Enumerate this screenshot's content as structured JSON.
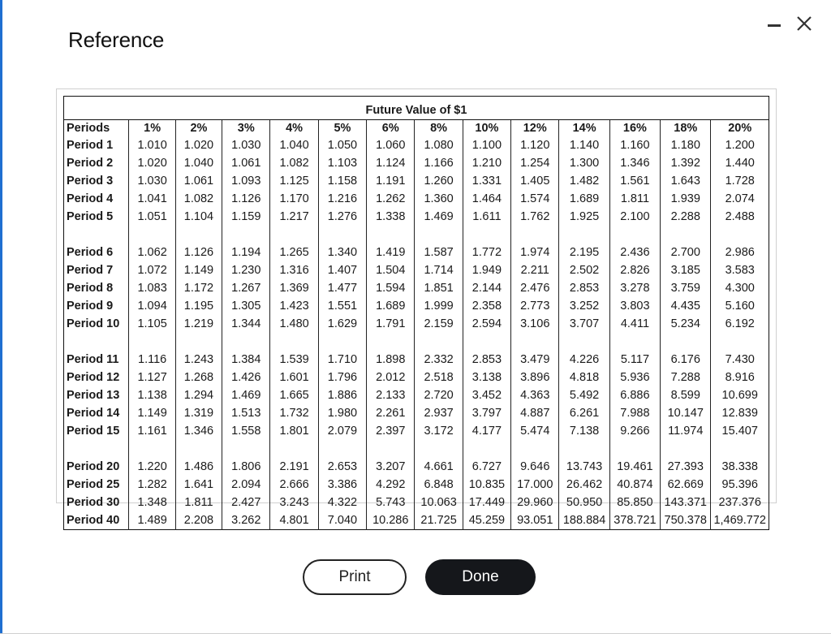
{
  "dialog": {
    "title": "Reference"
  },
  "table": {
    "caption": "Future Value of $1",
    "corner_header": "Periods",
    "rates": [
      "1%",
      "2%",
      "3%",
      "4%",
      "5%",
      "6%",
      "8%",
      "10%",
      "12%",
      "14%",
      "16%",
      "18%",
      "20%"
    ],
    "groups": [
      [
        {
          "label": "Period 1",
          "values": [
            "1.010",
            "1.020",
            "1.030",
            "1.040",
            "1.050",
            "1.060",
            "1.080",
            "1.100",
            "1.120",
            "1.140",
            "1.160",
            "1.180",
            "1.200"
          ]
        },
        {
          "label": "Period 2",
          "values": [
            "1.020",
            "1.040",
            "1.061",
            "1.082",
            "1.103",
            "1.124",
            "1.166",
            "1.210",
            "1.254",
            "1.300",
            "1.346",
            "1.392",
            "1.440"
          ]
        },
        {
          "label": "Period 3",
          "values": [
            "1.030",
            "1.061",
            "1.093",
            "1.125",
            "1.158",
            "1.191",
            "1.260",
            "1.331",
            "1.405",
            "1.482",
            "1.561",
            "1.643",
            "1.728"
          ]
        },
        {
          "label": "Period 4",
          "values": [
            "1.041",
            "1.082",
            "1.126",
            "1.170",
            "1.216",
            "1.262",
            "1.360",
            "1.464",
            "1.574",
            "1.689",
            "1.811",
            "1.939",
            "2.074"
          ]
        },
        {
          "label": "Period 5",
          "values": [
            "1.051",
            "1.104",
            "1.159",
            "1.217",
            "1.276",
            "1.338",
            "1.469",
            "1.611",
            "1.762",
            "1.925",
            "2.100",
            "2.288",
            "2.488"
          ]
        }
      ],
      [
        {
          "label": "Period 6",
          "values": [
            "1.062",
            "1.126",
            "1.194",
            "1.265",
            "1.340",
            "1.419",
            "1.587",
            "1.772",
            "1.974",
            "2.195",
            "2.436",
            "2.700",
            "2.986"
          ]
        },
        {
          "label": "Period 7",
          "values": [
            "1.072",
            "1.149",
            "1.230",
            "1.316",
            "1.407",
            "1.504",
            "1.714",
            "1.949",
            "2.211",
            "2.502",
            "2.826",
            "3.185",
            "3.583"
          ]
        },
        {
          "label": "Period 8",
          "values": [
            "1.083",
            "1.172",
            "1.267",
            "1.369",
            "1.477",
            "1.594",
            "1.851",
            "2.144",
            "2.476",
            "2.853",
            "3.278",
            "3.759",
            "4.300"
          ]
        },
        {
          "label": "Period 9",
          "values": [
            "1.094",
            "1.195",
            "1.305",
            "1.423",
            "1.551",
            "1.689",
            "1.999",
            "2.358",
            "2.773",
            "3.252",
            "3.803",
            "4.435",
            "5.160"
          ]
        },
        {
          "label": "Period 10",
          "values": [
            "1.105",
            "1.219",
            "1.344",
            "1.480",
            "1.629",
            "1.791",
            "2.159",
            "2.594",
            "3.106",
            "3.707",
            "4.411",
            "5.234",
            "6.192"
          ]
        }
      ],
      [
        {
          "label": "Period 11",
          "values": [
            "1.116",
            "1.243",
            "1.384",
            "1.539",
            "1.710",
            "1.898",
            "2.332",
            "2.853",
            "3.479",
            "4.226",
            "5.117",
            "6.176",
            "7.430"
          ]
        },
        {
          "label": "Period 12",
          "values": [
            "1.127",
            "1.268",
            "1.426",
            "1.601",
            "1.796",
            "2.012",
            "2.518",
            "3.138",
            "3.896",
            "4.818",
            "5.936",
            "7.288",
            "8.916"
          ]
        },
        {
          "label": "Period 13",
          "values": [
            "1.138",
            "1.294",
            "1.469",
            "1.665",
            "1.886",
            "2.133",
            "2.720",
            "3.452",
            "4.363",
            "5.492",
            "6.886",
            "8.599",
            "10.699"
          ]
        },
        {
          "label": "Period 14",
          "values": [
            "1.149",
            "1.319",
            "1.513",
            "1.732",
            "1.980",
            "2.261",
            "2.937",
            "3.797",
            "4.887",
            "6.261",
            "7.988",
            "10.147",
            "12.839"
          ]
        },
        {
          "label": "Period 15",
          "values": [
            "1.161",
            "1.346",
            "1.558",
            "1.801",
            "2.079",
            "2.397",
            "3.172",
            "4.177",
            "5.474",
            "7.138",
            "9.266",
            "11.974",
            "15.407"
          ]
        }
      ],
      [
        {
          "label": "Period 20",
          "values": [
            "1.220",
            "1.486",
            "1.806",
            "2.191",
            "2.653",
            "3.207",
            "4.661",
            "6.727",
            "9.646",
            "13.743",
            "19.461",
            "27.393",
            "38.338"
          ]
        },
        {
          "label": "Period 25",
          "values": [
            "1.282",
            "1.641",
            "2.094",
            "2.666",
            "3.386",
            "4.292",
            "6.848",
            "10.835",
            "17.000",
            "26.462",
            "40.874",
            "62.669",
            "95.396"
          ]
        },
        {
          "label": "Period 30",
          "values": [
            "1.348",
            "1.811",
            "2.427",
            "3.243",
            "4.322",
            "5.743",
            "10.063",
            "17.449",
            "29.960",
            "50.950",
            "85.850",
            "143.371",
            "237.376"
          ]
        },
        {
          "label": "Period 40",
          "values": [
            "1.489",
            "2.208",
            "3.262",
            "4.801",
            "7.040",
            "10.286",
            "21.725",
            "45.259",
            "93.051",
            "188.884",
            "378.721",
            "750.378",
            "1,469.772"
          ]
        }
      ]
    ]
  },
  "buttons": {
    "print": "Print",
    "done": "Done"
  },
  "icons": {
    "minimize": "minimize-icon",
    "close": "close-icon"
  }
}
